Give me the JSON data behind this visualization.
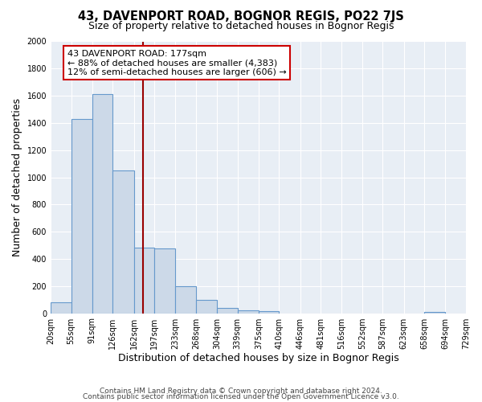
{
  "title": "43, DAVENPORT ROAD, BOGNOR REGIS, PO22 7JS",
  "subtitle": "Size of property relative to detached houses in Bognor Regis",
  "xlabel": "Distribution of detached houses by size in Bognor Regis",
  "ylabel": "Number of detached properties",
  "bin_edges": [
    20,
    55,
    91,
    126,
    162,
    197,
    233,
    268,
    304,
    339,
    375,
    410,
    446,
    481,
    516,
    552,
    587,
    623,
    658,
    694,
    729
  ],
  "bin_heights": [
    80,
    1430,
    1610,
    1050,
    480,
    475,
    200,
    100,
    40,
    20,
    15,
    0,
    0,
    0,
    0,
    0,
    0,
    0,
    10,
    0
  ],
  "bar_color": "#ccd9e8",
  "bar_edge_color": "#6699cc",
  "property_value": 177,
  "vline_color": "#990000",
  "annotation_line1": "43 DAVENPORT ROAD: 177sqm",
  "annotation_line2": "← 88% of detached houses are smaller (4,383)",
  "annotation_line3": "12% of semi-detached houses are larger (606) →",
  "annotation_box_color": "white",
  "annotation_box_edge_color": "#cc0000",
  "ylim": [
    0,
    2000
  ],
  "yticks": [
    0,
    200,
    400,
    600,
    800,
    1000,
    1200,
    1400,
    1600,
    1800,
    2000
  ],
  "footer1": "Contains HM Land Registry data © Crown copyright and database right 2024.",
  "footer2": "Contains public sector information licensed under the Open Government Licence v3.0.",
  "bg_color": "#ffffff",
  "plot_bg_color": "#e8eef5",
  "grid_color": "#ffffff",
  "title_fontsize": 10.5,
  "subtitle_fontsize": 9,
  "axis_label_fontsize": 9,
  "tick_fontsize": 7,
  "footer_fontsize": 6.5,
  "annotation_fontsize": 8
}
